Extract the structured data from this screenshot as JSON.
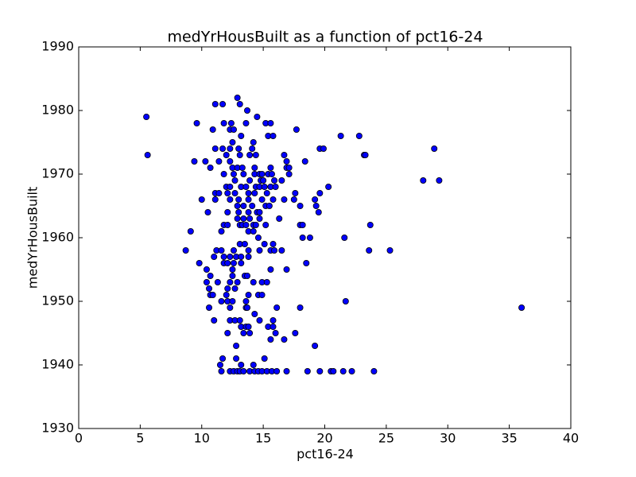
{
  "chart_data": {
    "type": "scatter",
    "title": "medYrHousBuilt as a function of pct16-24",
    "xlabel": "pct16-24",
    "ylabel": "medYrHousBuilt",
    "color": "#0000ff",
    "edgecolor": "#000000",
    "xlim": [
      0,
      40
    ],
    "xticks": [
      0,
      5,
      10,
      15,
      20,
      25,
      30,
      35,
      40
    ],
    "ylim": [
      1930,
      1990
    ],
    "yticks": [
      1930,
      1940,
      1950,
      1960,
      1970,
      1980,
      1990
    ],
    "x": [
      12.9,
      11.1,
      11.7,
      13.1,
      13.7,
      5.5,
      14.5,
      9.6,
      11.8,
      12.4,
      13.6,
      15.2,
      15.6,
      10.9,
      12.3,
      12.6,
      17.7,
      13.2,
      15.4,
      15.8,
      21.3,
      22.8,
      12.5,
      14.2,
      11.1,
      11.7,
      12.3,
      13.0,
      14.1,
      19.6,
      19.9,
      28.9,
      5.6,
      12.0,
      13.1,
      13.9,
      14.4,
      16.7,
      23.2,
      23.3,
      9.4,
      10.3,
      11.4,
      12.3,
      16.9,
      18.4,
      10.7,
      12.5,
      12.9,
      13.3,
      14.3,
      15.6,
      16.9,
      17.1,
      11.8,
      12.6,
      13.4,
      14.3,
      14.7,
      14.9,
      15.4,
      15.7,
      17.1,
      12.7,
      13.9,
      14.8,
      15.0,
      15.9,
      16.5,
      28.0,
      29.3,
      12.0,
      12.3,
      13.2,
      13.6,
      14.4,
      14.7,
      15.1,
      15.6,
      16.0,
      20.3,
      11.1,
      11.4,
      12.1,
      12.7,
      13.8,
      14.3,
      15.3,
      17.6,
      19.6,
      10.0,
      11.1,
      12.3,
      13.0,
      13.8,
      14.9,
      15.8,
      16.7,
      17.5,
      19.2,
      12.9,
      13.4,
      14.1,
      15.2,
      15.5,
      18.0,
      19.3,
      10.5,
      12.1,
      13.0,
      13.8,
      14.5,
      14.7,
      19.5,
      12.9,
      13.4,
      13.9,
      14.7,
      16.3,
      11.8,
      12.1,
      13.1,
      13.3,
      13.6,
      14.2,
      14.4,
      15.2,
      18.0,
      18.2,
      23.7,
      9.1,
      11.6,
      13.8,
      14.2,
      14.6,
      18.2,
      18.8,
      21.6,
      13.1,
      13.5,
      15.1,
      15.8,
      8.7,
      11.2,
      11.6,
      12.6,
      13.8,
      14.7,
      15.6,
      15.9,
      16.5,
      23.6,
      25.3,
      11.0,
      11.8,
      12.3,
      12.8,
      13.2,
      13.8,
      9.8,
      11.8,
      12.1,
      12.6,
      13.2,
      18.5,
      10.4,
      12.5,
      15.6,
      16.9,
      10.7,
      12.5,
      13.5,
      13.7,
      10.4,
      11.3,
      12.3,
      12.9,
      14.2,
      14.9,
      15.3,
      10.6,
      12.1,
      12.7,
      10.7,
      10.9,
      12.0,
      13.8,
      14.6,
      14.9,
      11.6,
      12.1,
      12.5,
      13.6,
      21.7,
      10.6,
      12.3,
      13.6,
      13.7,
      16.1,
      18.0,
      36.0,
      14.3,
      11.0,
      12.3,
      12.7,
      13.1,
      14.7,
      15.8,
      13.2,
      13.6,
      13.8,
      15.4,
      15.8,
      12.1,
      13.4,
      13.9,
      16.0,
      17.6,
      15.6,
      16.7,
      12.8,
      19.2,
      11.7,
      12.8,
      15.1,
      11.5,
      13.2,
      14.2,
      11.6,
      12.3,
      12.6,
      12.9,
      13.1,
      13.4,
      13.9,
      14.3,
      14.6,
      14.9,
      15.3,
      15.7,
      16.1,
      16.9,
      18.6,
      19.6,
      20.5,
      20.7,
      21.5,
      22.2,
      24.0
    ],
    "y": [
      1982,
      1981,
      1981,
      1981,
      1980,
      1979,
      1979,
      1978,
      1978,
      1978,
      1978,
      1978,
      1978,
      1977,
      1977,
      1977,
      1977,
      1976,
      1976,
      1976,
      1976,
      1976,
      1975,
      1975,
      1974,
      1974,
      1974,
      1974,
      1974,
      1974,
      1974,
      1974,
      1973,
      1973,
      1973,
      1973,
      1973,
      1973,
      1973,
      1973,
      1972,
      1972,
      1972,
      1972,
      1972,
      1972,
      1971,
      1971,
      1971,
      1971,
      1971,
      1971,
      1971,
      1971,
      1970,
      1970,
      1970,
      1970,
      1970,
      1970,
      1970,
      1970,
      1970,
      1969,
      1969,
      1969,
      1969,
      1969,
      1969,
      1969,
      1969,
      1968,
      1968,
      1968,
      1968,
      1968,
      1968,
      1968,
      1968,
      1968,
      1968,
      1967,
      1967,
      1967,
      1967,
      1967,
      1967,
      1967,
      1967,
      1967,
      1966,
      1966,
      1966,
      1966,
      1966,
      1966,
      1966,
      1966,
      1966,
      1966,
      1965,
      1965,
      1965,
      1965,
      1965,
      1965,
      1965,
      1964,
      1964,
      1964,
      1964,
      1964,
      1964,
      1964,
      1963,
      1963,
      1963,
      1963,
      1963,
      1962,
      1962,
      1962,
      1962,
      1962,
      1962,
      1962,
      1962,
      1962,
      1962,
      1962,
      1961,
      1961,
      1961,
      1961,
      1960,
      1960,
      1960,
      1960,
      1959,
      1959,
      1959,
      1959,
      1958,
      1958,
      1958,
      1958,
      1958,
      1958,
      1958,
      1958,
      1958,
      1958,
      1958,
      1957,
      1957,
      1957,
      1957,
      1957,
      1957,
      1956,
      1956,
      1956,
      1956,
      1956,
      1956,
      1955,
      1955,
      1955,
      1955,
      1954,
      1954,
      1954,
      1954,
      1953,
      1953,
      1953,
      1953,
      1953,
      1953,
      1953,
      1952,
      1952,
      1952,
      1951,
      1951,
      1951,
      1951,
      1951,
      1951,
      1950,
      1950,
      1950,
      1950,
      1950,
      1949,
      1949,
      1949,
      1949,
      1949,
      1949,
      1949,
      1948,
      1947,
      1947,
      1947,
      1947,
      1947,
      1947,
      1946,
      1946,
      1946,
      1946,
      1946,
      1945,
      1945,
      1945,
      1945,
      1945,
      1944,
      1944,
      1943,
      1943,
      1941,
      1941,
      1941,
      1940,
      1940,
      1940,
      1939,
      1939,
      1939,
      1939,
      1939,
      1939,
      1939,
      1939,
      1939,
      1939,
      1939,
      1939,
      1939,
      1939,
      1939,
      1939,
      1939,
      1939,
      1939,
      1939,
      1939
    ]
  }
}
